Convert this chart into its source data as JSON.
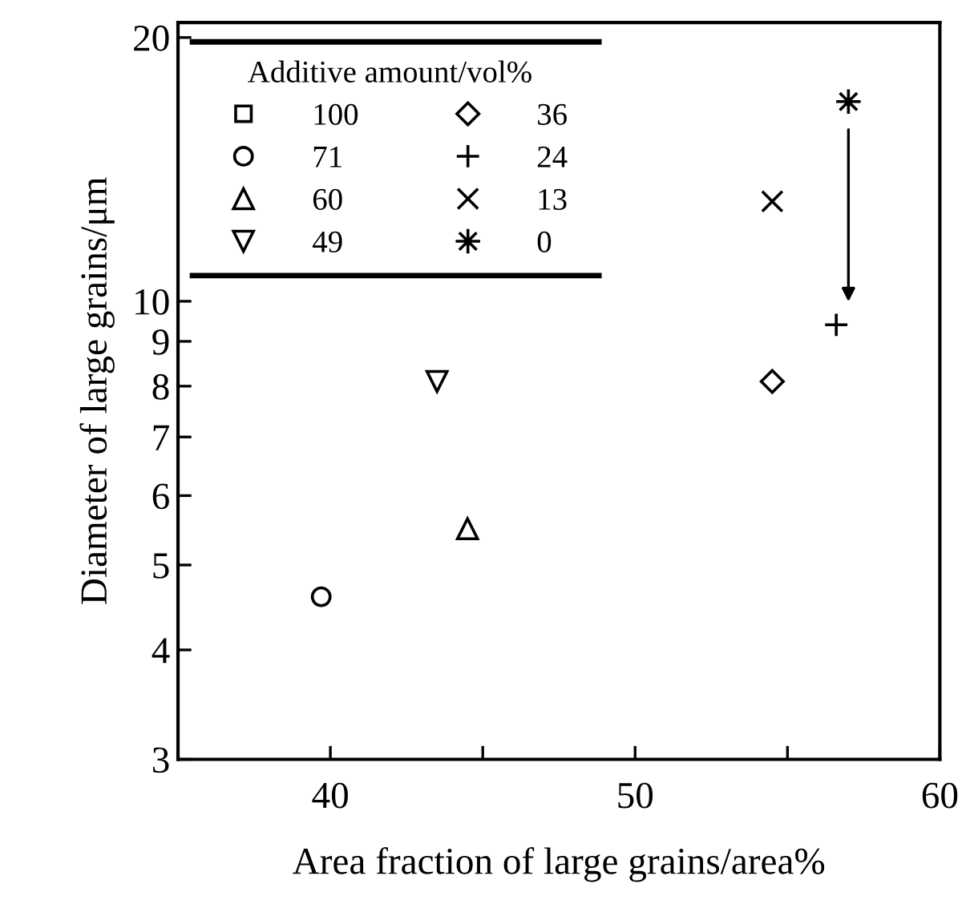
{
  "chart_data": {
    "type": "scatter",
    "xlabel": "Area fraction of large grains/area%",
    "ylabel": "Diameter of large grains/μm",
    "legend_title": "Additive amount/vol%",
    "log": "y",
    "xlim": [
      35,
      60
    ],
    "xticks": [
      40,
      {
        "value": 45,
        "label": null
      },
      50,
      {
        "value": 55,
        "label": null
      },
      60
    ],
    "ylim": [
      3,
      20.8
    ],
    "yticks": [
      3,
      4,
      5,
      6,
      7,
      8,
      9,
      10,
      20
    ],
    "legend": "top left",
    "grid": false,
    "series": [
      {
        "name": "100",
        "color": "#000000",
        "marker": "square"
      },
      {
        "name": "71",
        "color": "#000000",
        "marker": "circle",
        "x": [
          39.7
        ],
        "values": [
          4.6
        ]
      },
      {
        "name": "60",
        "color": "#000000",
        "marker": "triangle",
        "x": [
          44.5
        ],
        "values": [
          5.5
        ]
      },
      {
        "name": "49",
        "color": "#000000",
        "marker": "triangle_down",
        "x": [
          43.5
        ],
        "values": [
          8.1
        ]
      },
      {
        "name": "36",
        "color": "#000000",
        "marker": "diamond",
        "x": [
          54.5
        ],
        "values": [
          8.1
        ]
      },
      {
        "name": "24",
        "color": "#000000",
        "marker": "plus",
        "x": [
          56.6
        ],
        "values": [
          9.4
        ]
      },
      {
        "name": "13",
        "color": "#000000",
        "marker": "cross",
        "x": [
          54.5
        ],
        "values": [
          13.0
        ]
      },
      {
        "name": "0",
        "color": "#000000",
        "marker": "star",
        "x": [
          57.0
        ],
        "values": [
          16.9
        ]
      }
    ]
  }
}
